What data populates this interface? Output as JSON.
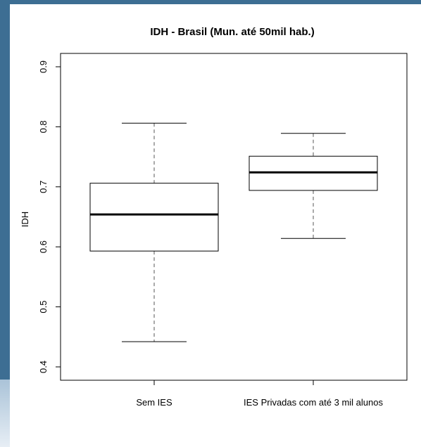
{
  "chart_data": {
    "type": "boxplot",
    "title": "IDH - Brasil (Mun. até 50mil hab.)",
    "xlabel": "",
    "ylabel": "IDH",
    "ylim": [
      0.4,
      0.9
    ],
    "yticks": [
      "0.4",
      "0.5",
      "0.6",
      "0.7",
      "0.8",
      "0.9"
    ],
    "grid": false,
    "categories": [
      "Sem IES",
      "IES Privadas com até 3 mil alunos"
    ],
    "boxes": [
      {
        "whisker_low": 0.442,
        "q1": 0.593,
        "median": 0.654,
        "q3": 0.706,
        "whisker_high": 0.806
      },
      {
        "whisker_low": 0.614,
        "q1": 0.694,
        "median": 0.724,
        "q3": 0.751,
        "whisker_high": 0.789
      }
    ]
  }
}
